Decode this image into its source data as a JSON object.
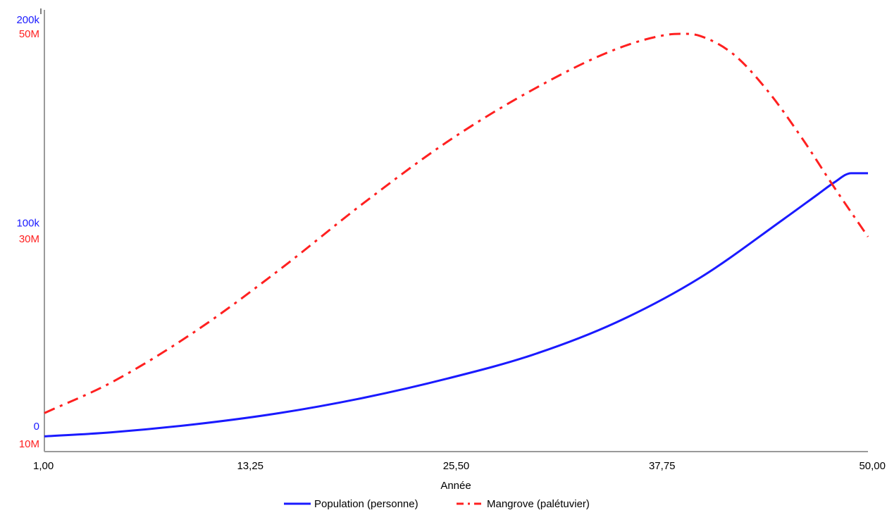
{
  "chart_data": {
    "type": "line",
    "title": "",
    "xlabel": "Année",
    "x_ticks": [
      "1,00",
      "13,25",
      "25,50",
      "37,75",
      "50,00"
    ],
    "xlim": [
      1,
      50
    ],
    "grid": false,
    "legend_position": "bottom",
    "y_axes": [
      {
        "series": "Population (personne)",
        "color": "#1a1aff",
        "ticks": [
          "0",
          "100k",
          "200k"
        ],
        "ylim": [
          0,
          200000
        ]
      },
      {
        "series": "Mangrove (palétuvier)",
        "color": "#ff2020",
        "ticks": [
          "10M",
          "30M",
          "50M"
        ],
        "ylim": [
          10000000,
          50000000
        ]
      }
    ],
    "series": [
      {
        "name": "Population (personne)",
        "color": "#1a1aff",
        "style": "solid",
        "axis": 0,
        "x": [
          1,
          5,
          10,
          15,
          20,
          25,
          30,
          35,
          40,
          45,
          47,
          48,
          49,
          50
        ],
        "values": [
          -5000,
          -3000,
          1000,
          6500,
          14000,
          23500,
          35000,
          51000,
          73000,
          102000,
          114000,
          120000,
          124500,
          124500
        ]
      },
      {
        "name": "Mangrove (palétuvier)",
        "color": "#ff2020",
        "style": "dashdot",
        "axis": 1,
        "x": [
          1,
          5,
          10,
          15,
          20,
          25,
          30,
          35,
          38,
          39,
          40,
          42,
          44,
          46,
          48,
          50
        ],
        "values": [
          13000000,
          16000000,
          21000000,
          27000000,
          33500000,
          39500000,
          44500000,
          48500000,
          49900000,
          50000000,
          49800000,
          48000000,
          44500000,
          40000000,
          35000000,
          30200000
        ]
      }
    ]
  }
}
